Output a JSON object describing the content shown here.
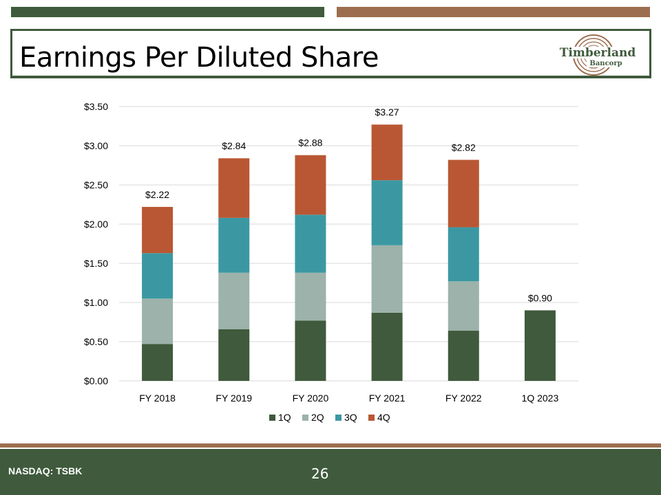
{
  "title": "Earnings Per Diluted Share",
  "logo": {
    "line1": "Timberland",
    "line2": "Bancorp"
  },
  "footer": {
    "ticker": "NASDAQ: TSBK",
    "page_number": "26"
  },
  "colors": {
    "green": "#3f5a3c",
    "brown": "#9c6e4f",
    "q1": "#3f5a3c",
    "q2": "#9cb2aa",
    "q3": "#3b98a2",
    "q4": "#b95734"
  },
  "chart_data": {
    "type": "bar",
    "stacked": true,
    "title": "",
    "xlabel": "",
    "ylabel": "",
    "ylim": [
      0,
      3.5
    ],
    "ytick_step": 0.5,
    "yticks": [
      "$0.00",
      "$0.50",
      "$1.00",
      "$1.50",
      "$2.00",
      "$2.50",
      "$3.00",
      "$3.50"
    ],
    "grid": true,
    "legend": "bottom",
    "categories": [
      "FY 2018",
      "FY 2019",
      "FY 2020",
      "FY 2021",
      "FY 2022",
      "1Q 2023"
    ],
    "series": [
      {
        "name": "1Q",
        "color": "#3f5a3c",
        "values": [
          0.47,
          0.66,
          0.77,
          0.87,
          0.64,
          0.9
        ]
      },
      {
        "name": "2Q",
        "color": "#9cb2aa",
        "values": [
          0.58,
          0.72,
          0.61,
          0.86,
          0.63,
          0
        ]
      },
      {
        "name": "3Q",
        "color": "#3b98a2",
        "values": [
          0.58,
          0.7,
          0.74,
          0.83,
          0.69,
          0
        ]
      },
      {
        "name": "4Q",
        "color": "#b95734",
        "values": [
          0.59,
          0.76,
          0.76,
          0.71,
          0.86,
          0
        ]
      }
    ],
    "total_labels": [
      "$2.22",
      "$2.84",
      "$2.88",
      "$3.27",
      "$2.82",
      "$0.90"
    ]
  }
}
